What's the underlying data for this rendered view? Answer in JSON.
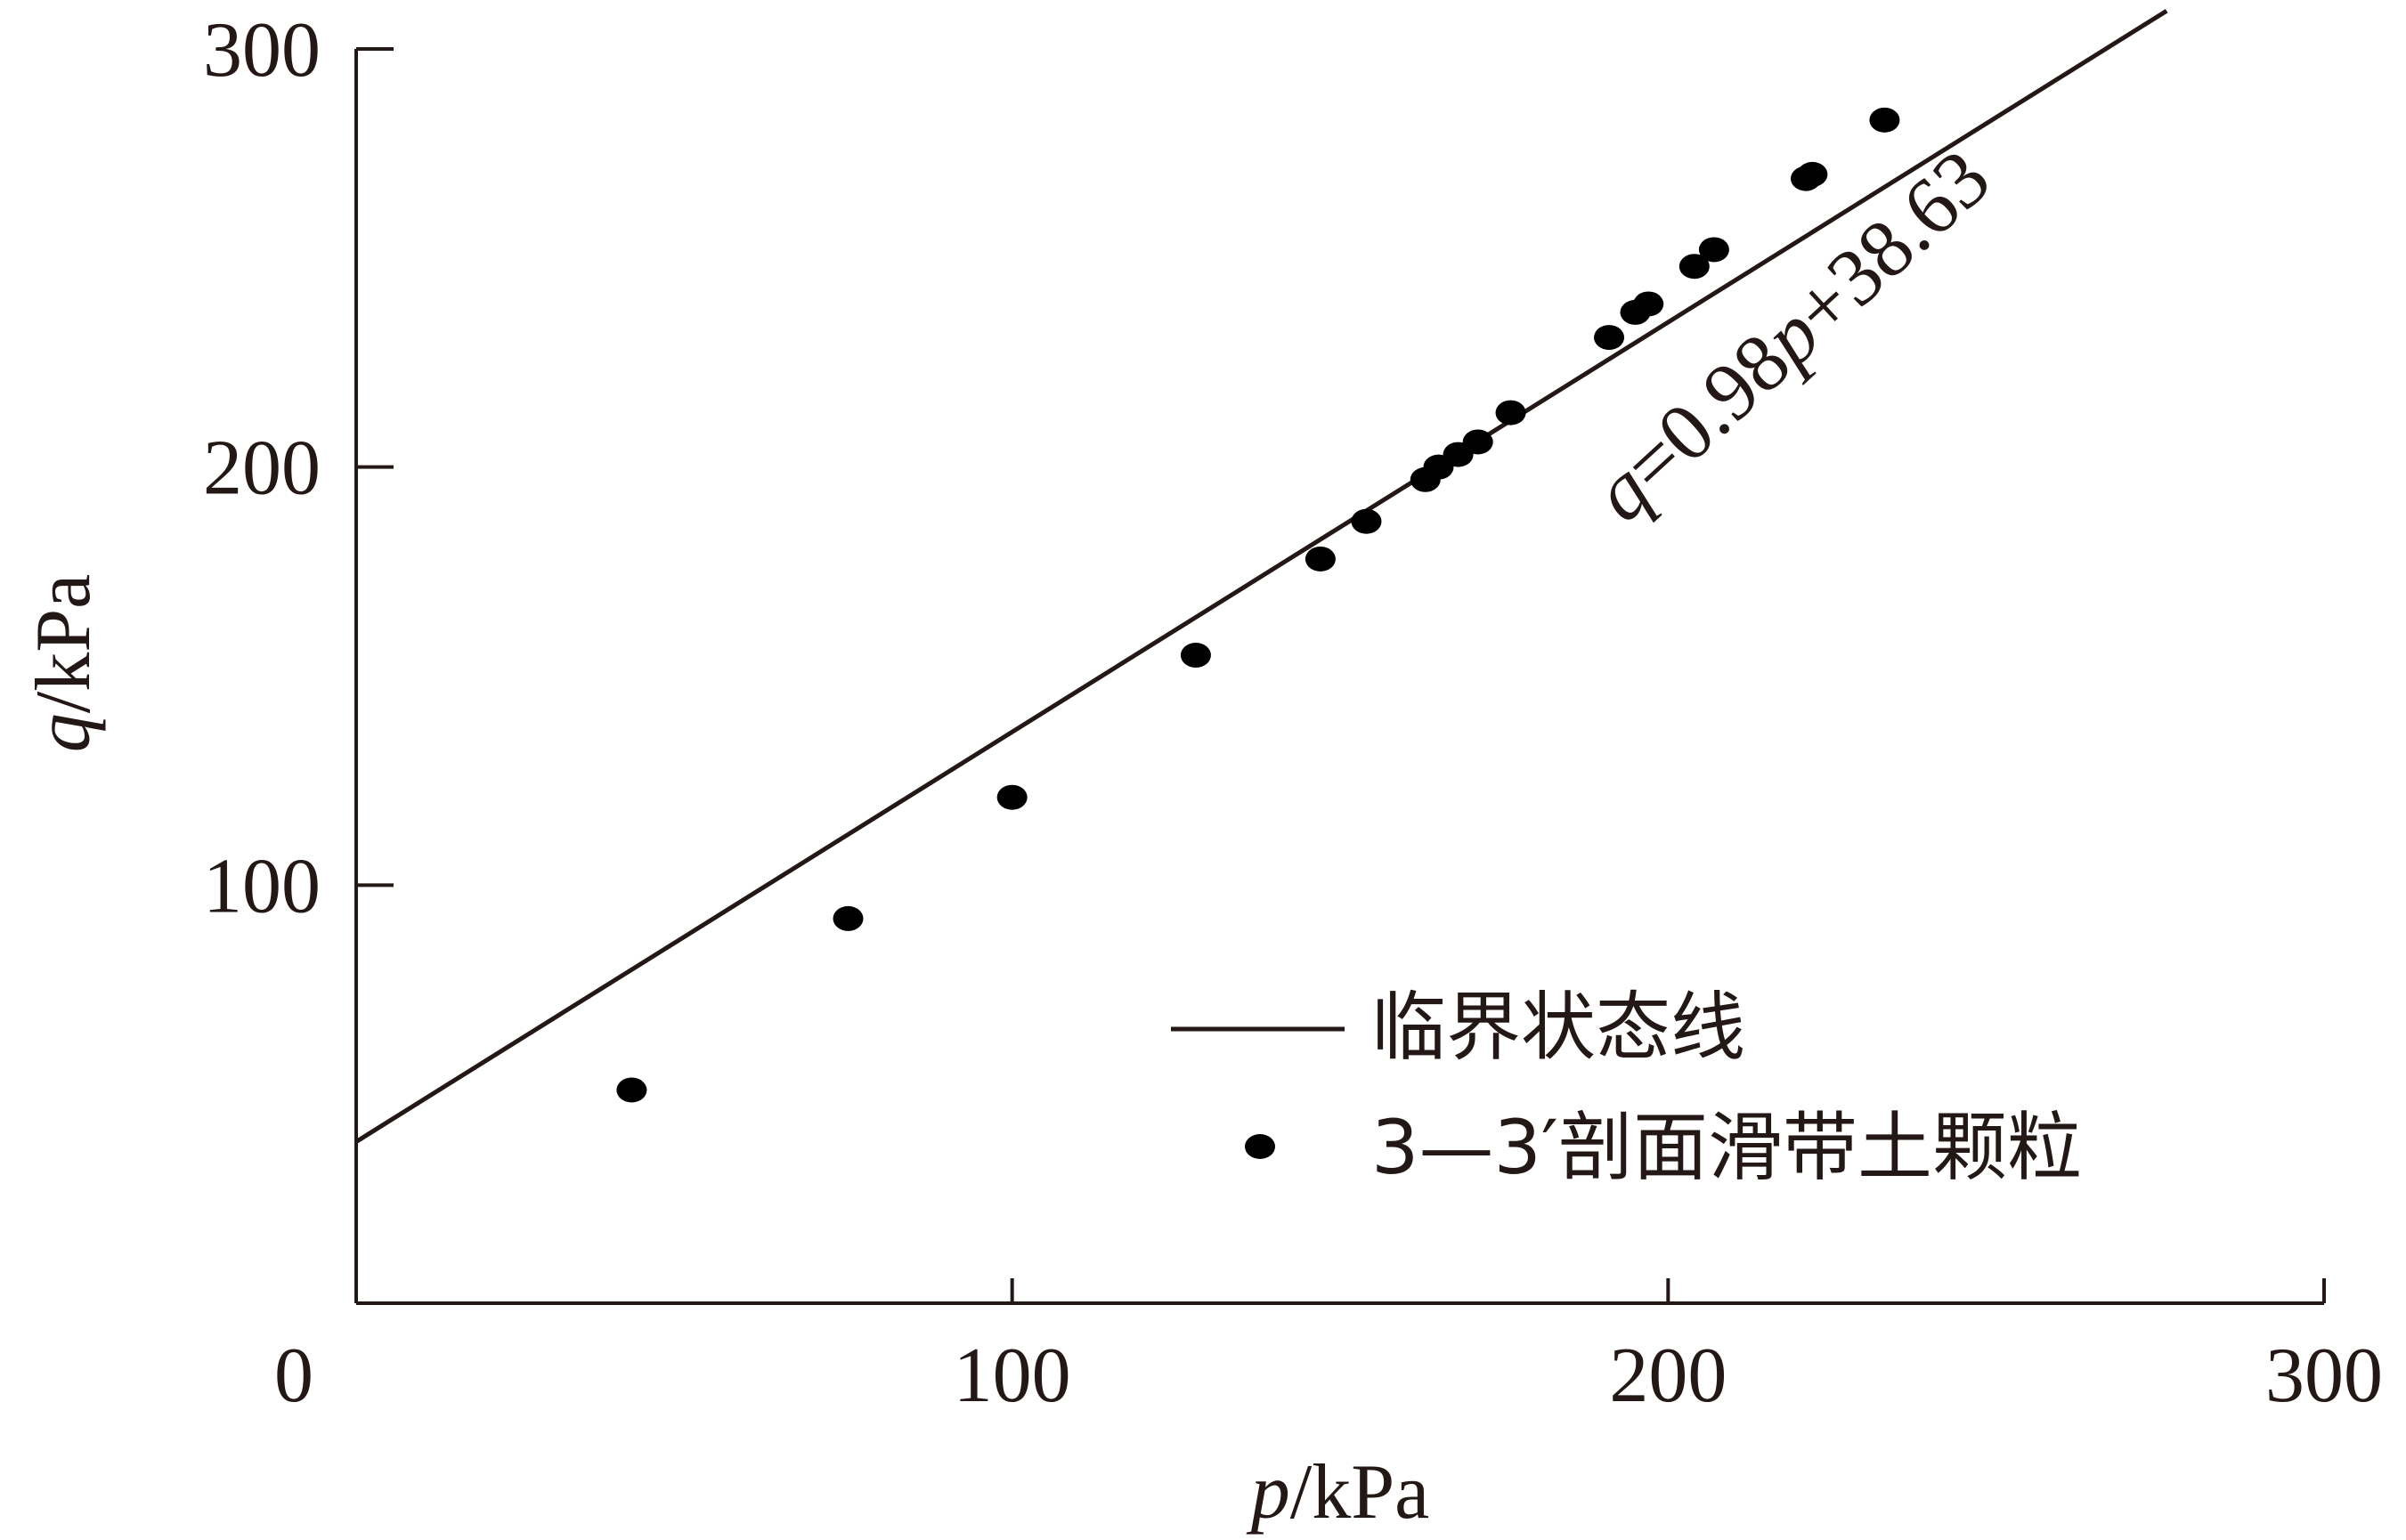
{
  "chart_data": {
    "type": "scatter",
    "xlabel_var": "p",
    "xlabel_unit": "/kPa",
    "ylabel_var": "q",
    "ylabel_unit": "/kPa",
    "xlim": [
      0,
      300
    ],
    "ylim": [
      0,
      300
    ],
    "x_ticks": [
      "0",
      "100",
      "200",
      "300"
    ],
    "y_ticks": [
      "100",
      "200",
      "300"
    ],
    "grid": false,
    "legend_position": "bottom-right",
    "fit_line": {
      "name": "临界状态线",
      "slope": 0.98,
      "intercept": 38.63,
      "x_range": [
        0,
        276
      ],
      "equation_var": "q",
      "equation_mid": "=0.98",
      "equation_var2": "p",
      "equation_tail": "+38.63"
    },
    "series": [
      {
        "name": "3—3′剖面滑带土颗粒",
        "points": [
          [
            42,
            51
          ],
          [
            75,
            92
          ],
          [
            100,
            121
          ],
          [
            128,
            155
          ],
          [
            147,
            178
          ],
          [
            154,
            187
          ],
          [
            163,
            197
          ],
          [
            165,
            200
          ],
          [
            168,
            203
          ],
          [
            171,
            206
          ],
          [
            176,
            213
          ],
          [
            191,
            231
          ],
          [
            195,
            237
          ],
          [
            197,
            239
          ],
          [
            204,
            248
          ],
          [
            207,
            252
          ],
          [
            221,
            269
          ],
          [
            222,
            270
          ],
          [
            233,
            283
          ]
        ]
      }
    ],
    "colors": {
      "axis": "#231815",
      "points": "#000000",
      "line": "#231815"
    }
  }
}
